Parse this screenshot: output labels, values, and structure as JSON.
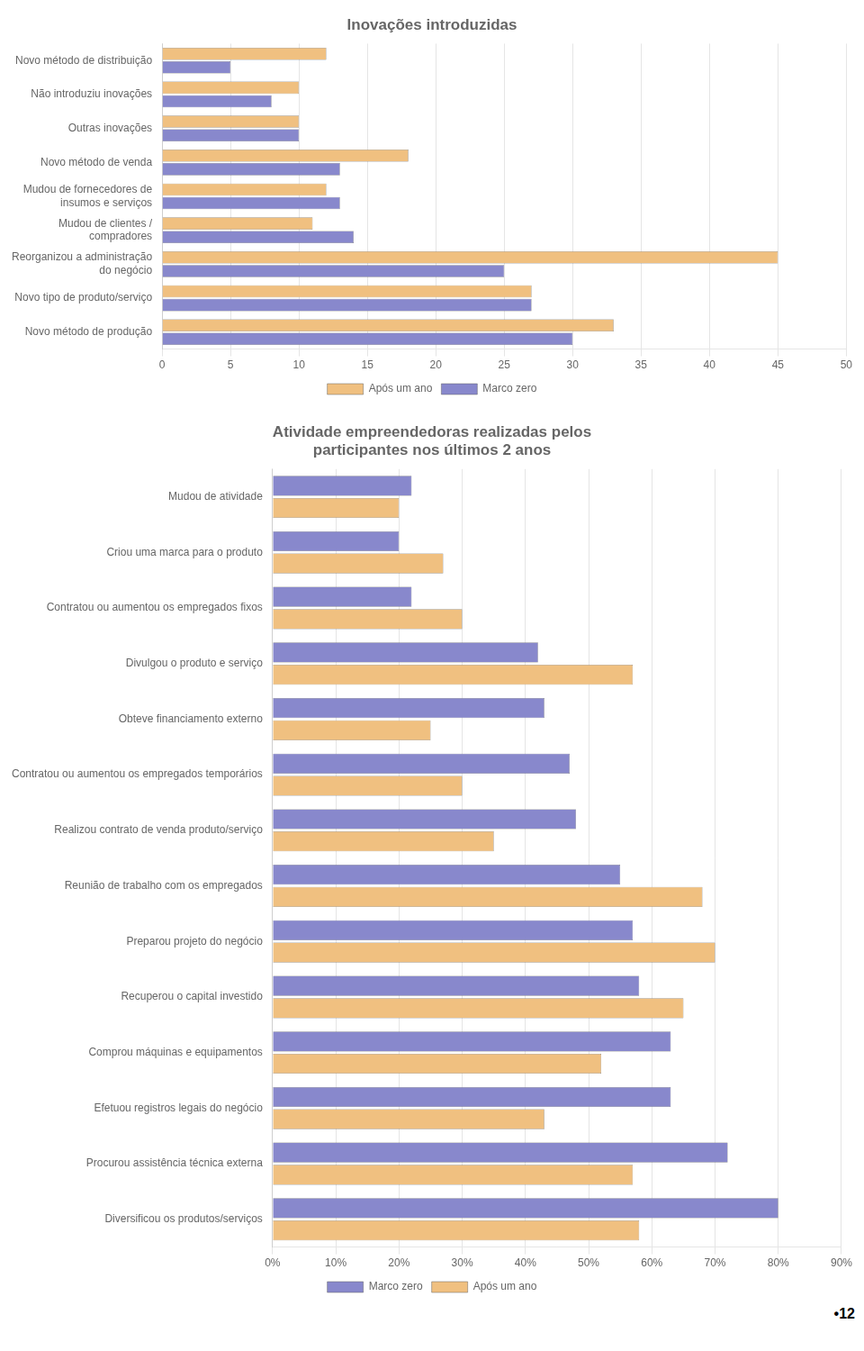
{
  "chart_data": [
    {
      "type": "bar",
      "orientation": "horizontal",
      "title": "Inovações introduzidas",
      "categories": [
        "Novo método de distribuição",
        "Não introduziu inovações",
        "Outras inovações",
        "Novo método de venda",
        "Mudou de fornecedores de\ninsumos e serviços",
        "Mudou de clientes /\ncompradores",
        "Reorganizou a administração\ndo negócio",
        "Novo tipo de produto/serviço",
        "Novo método de produção"
      ],
      "series": [
        {
          "name": "Após um ano",
          "color": "#f0c080",
          "values": [
            12,
            10,
            10,
            18,
            12,
            11,
            45,
            27,
            33
          ]
        },
        {
          "name": "Marco zero",
          "color": "#8888cc",
          "values": [
            5,
            8,
            10,
            13,
            13,
            14,
            25,
            27,
            30
          ]
        }
      ],
      "xlim": [
        0,
        50
      ],
      "xticks": [
        0,
        5,
        10,
        15,
        20,
        25,
        30,
        35,
        40,
        45,
        50
      ],
      "grid": true,
      "legend": "bottom"
    },
    {
      "type": "bar",
      "orientation": "horizontal",
      "title": "Atividade empreendedoras realizadas pelos\nparticipantes nos últimos 2 anos",
      "categories": [
        "Mudou de atividade",
        "Criou uma marca para o produto",
        "Contratou ou aumentou os empregados fixos",
        "Divulgou o produto e serviço",
        "Obteve financiamento externo",
        "Contratou ou aumentou os empregados temporários",
        "Realizou contrato de venda produto/serviço",
        "Reunião de trabalho com os empregados",
        "Preparou projeto do negócio",
        "Recuperou o capital investido",
        "Comprou máquinas e equipamentos",
        "Efetuou registros legais do negócio",
        "Procurou assistência técnica externa",
        "Diversificou os produtos/serviços"
      ],
      "series": [
        {
          "name": "Marco zero",
          "color": "#8888cc",
          "values": [
            22,
            20,
            22,
            42,
            43,
            47,
            48,
            55,
            57,
            58,
            63,
            63,
            72,
            80
          ]
        },
        {
          "name": "Após um ano",
          "color": "#f0c080",
          "values": [
            20,
            27,
            30,
            57,
            25,
            30,
            35,
            68,
            70,
            65,
            52,
            43,
            57,
            58
          ]
        }
      ],
      "xlim": [
        0,
        90
      ],
      "xticks": [
        {
          "value": 0,
          "label": "0%"
        },
        {
          "value": 10,
          "label": "10%"
        },
        {
          "value": 20,
          "label": "20%"
        },
        {
          "value": 30,
          "label": "30%"
        },
        {
          "value": 40,
          "label": "40%"
        },
        {
          "value": 50,
          "label": "50%"
        },
        {
          "value": 60,
          "label": "60%"
        },
        {
          "value": 70,
          "label": "70%"
        },
        {
          "value": 80,
          "label": "80%"
        },
        {
          "value": 90,
          "label": "90%"
        }
      ],
      "grid": true,
      "legend": "bottom",
      "annotations": [
        "•12"
      ]
    }
  ]
}
